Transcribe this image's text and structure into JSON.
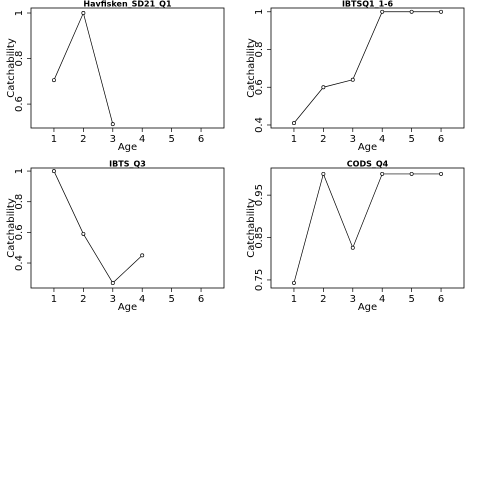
{
  "chart_data": [
    {
      "type": "line",
      "title": "Havfisken_SD21_Q1",
      "xlabel": "Age",
      "ylabel": "Catchability",
      "x": [
        1,
        2,
        3,
        4,
        5,
        6
      ],
      "values": [
        0.705,
        1.0,
        0.512,
        null,
        null,
        null
      ],
      "xlim": [
        0.22,
        6.78
      ],
      "ylim": [
        0.495,
        1.022
      ],
      "xticks": [
        1,
        2,
        3,
        4,
        5,
        6
      ],
      "yticks": [
        0.6,
        0.8,
        1.0
      ],
      "color": "#000000"
    },
    {
      "type": "line",
      "title": "IBTSQ1_1-6",
      "xlabel": "Age",
      "ylabel": "Catchability",
      "x": [
        1,
        2,
        3,
        4,
        5,
        6
      ],
      "values": [
        0.41,
        0.6,
        0.64,
        1.0,
        1.0,
        1.0
      ],
      "xlim": [
        0.22,
        6.78
      ],
      "ylim": [
        0.384,
        1.02
      ],
      "xticks": [
        1,
        2,
        3,
        4,
        5,
        6
      ],
      "yticks": [
        0.4,
        0.6,
        0.8,
        1.0
      ],
      "color": "#000000"
    },
    {
      "type": "line",
      "title": "IBTS_Q3",
      "xlabel": "Age",
      "ylabel": "Catchability",
      "x": [
        1,
        2,
        3,
        4,
        5,
        6
      ],
      "values": [
        1.0,
        0.59,
        0.27,
        0.45,
        null,
        null
      ],
      "xlim": [
        0.22,
        6.78
      ],
      "ylim": [
        0.237,
        1.02
      ],
      "xticks": [
        1,
        2,
        3,
        4,
        5,
        6
      ],
      "yticks": [
        0.4,
        0.6,
        0.8,
        1.0
      ],
      "color": "#000000"
    },
    {
      "type": "line",
      "title": "CODS_Q4",
      "xlabel": "Age",
      "ylabel": "Catchability",
      "x": [
        1,
        2,
        3,
        4,
        5,
        6
      ],
      "values": [
        0.743,
        1.0,
        0.826,
        1.0,
        1.0,
        1.0
      ],
      "xlim": [
        0.22,
        6.78
      ],
      "ylim": [
        0.731,
        1.014
      ],
      "xticks": [
        1,
        2,
        3,
        4,
        5,
        6
      ],
      "yticks": [
        0.75,
        0.85,
        0.95
      ],
      "color": "#000000"
    }
  ]
}
